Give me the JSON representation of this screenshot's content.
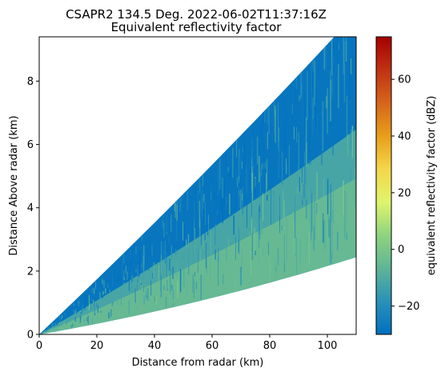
{
  "chart_data": {
    "type": "heatmap",
    "title": "CSAPR2 134.5 Deg. 2022-06-02T11:37:16Z",
    "subtitle": "Equivalent reflectivity factor",
    "xlabel": "Distance from radar (km)",
    "ylabel": "Distance Above radar  (km)",
    "xlim": [
      0,
      110
    ],
    "ylim": [
      0,
      9.4
    ],
    "xticks": [
      0,
      20,
      40,
      60,
      80,
      100
    ],
    "yticks": [
      0,
      2,
      4,
      6,
      8
    ],
    "elevation_deg": [
      0.9,
      4.9
    ],
    "colorbar": {
      "label": "equivalent reflectivity factor (dBZ)",
      "range": [
        -30,
        75
      ],
      "ticks": [
        -20,
        0,
        20,
        40,
        60
      ],
      "colormap": [
        "#0070c0",
        "#2a91b8",
        "#5fb596",
        "#8fd37f",
        "#dff56c",
        "#f5d64a",
        "#e89e1a",
        "#d6651b",
        "#c03212",
        "#a50000"
      ]
    },
    "bands": [
      {
        "elev_from_deg": 0.9,
        "elev_to_deg": 2.2,
        "dbz": -5
      },
      {
        "elev_from_deg": 2.2,
        "elev_to_deg": 3.0,
        "dbz": -12
      },
      {
        "elev_from_deg": 3.0,
        "elev_to_deg": 4.9,
        "dbz": -28
      }
    ]
  }
}
